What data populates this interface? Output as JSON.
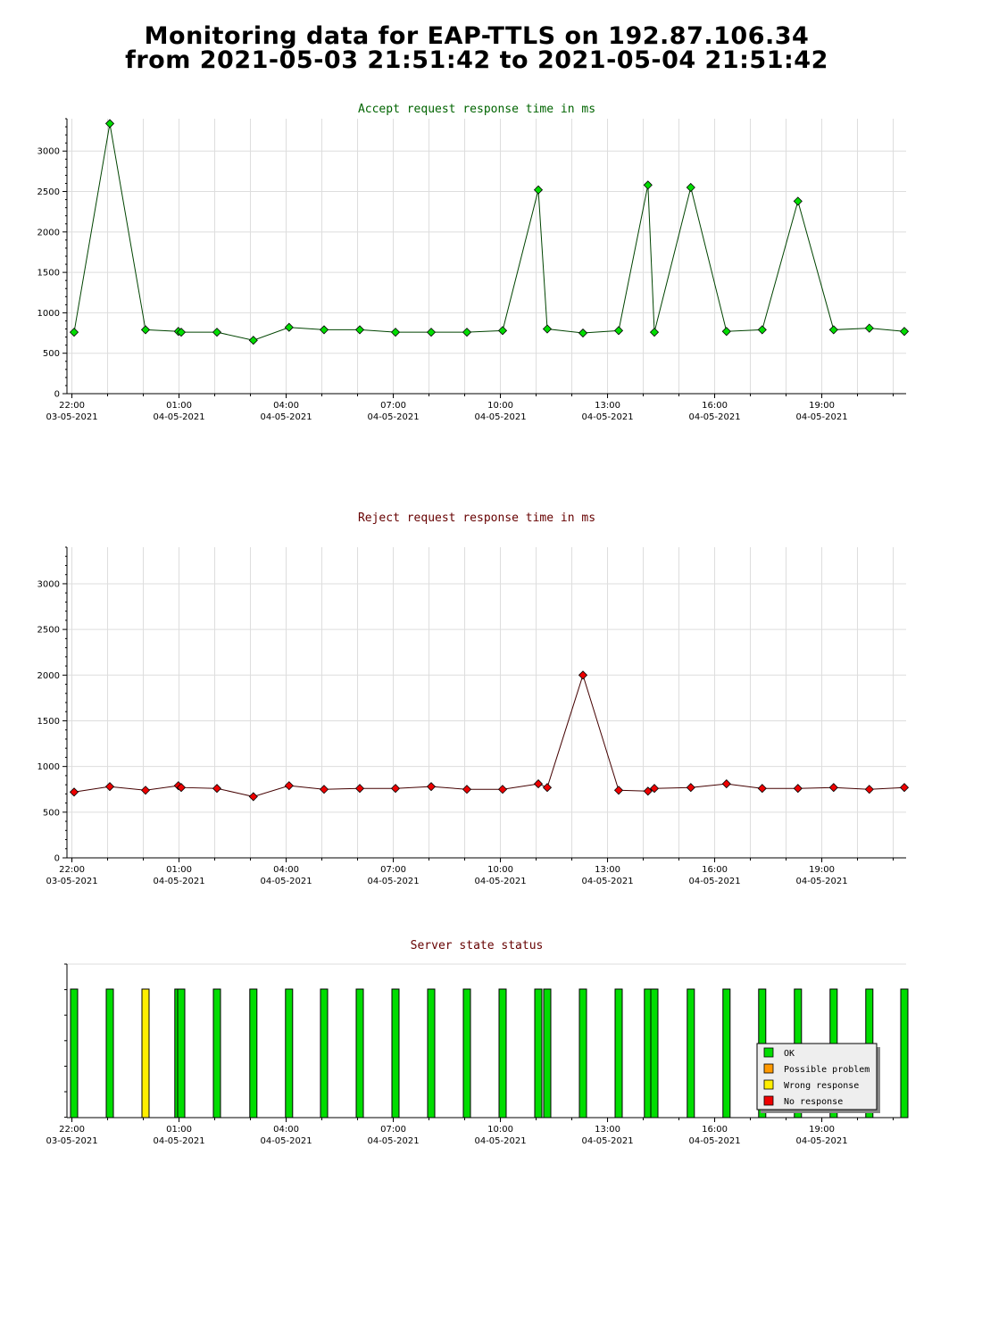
{
  "page": {
    "title_line1": "Monitoring data for EAP-TTLS on 192.87.106.34",
    "title_line2": "from 2021-05-03 21:51:42 to 2021-05-04 21:51:42"
  },
  "x_ticks": [
    {
      "h": -0.8617,
      "time": "22:00",
      "date": "03-05-2021"
    },
    {
      "h": 2.1383,
      "time": "01:00",
      "date": "04-05-2021"
    },
    {
      "h": 5.1383,
      "time": "04:00",
      "date": "04-05-2021"
    },
    {
      "h": 8.1383,
      "time": "07:00",
      "date": "04-05-2021"
    },
    {
      "h": 11.1383,
      "time": "10:00",
      "date": "04-05-2021"
    },
    {
      "h": 14.1383,
      "time": "13:00",
      "date": "04-05-2021"
    },
    {
      "h": 17.1383,
      "time": "16:00",
      "date": "04-05-2021"
    },
    {
      "h": 20.1383,
      "time": "19:00",
      "date": "04-05-2021"
    }
  ],
  "chart_data": [
    {
      "type": "line",
      "title": "Accept request response time in ms",
      "title_color": "#006400",
      "xlabel": "",
      "ylabel": "",
      "xlim_hours": [
        -1.0,
        22.5
      ],
      "ylim": [
        0,
        3400
      ],
      "yticks": [
        0,
        500,
        1000,
        1500,
        2000,
        2500,
        3000
      ],
      "grid": true,
      "point_color": "#00dd00",
      "line_color": "#004400",
      "x_hours": [
        -0.8,
        0.2,
        1.2,
        2.12,
        2.2,
        3.2,
        4.22,
        5.22,
        6.2,
        7.2,
        8.2,
        9.2,
        10.2,
        11.2,
        12.2,
        12.45,
        13.45,
        14.45,
        15.27,
        15.45,
        16.47,
        17.47,
        18.47,
        19.47,
        20.47,
        21.47,
        22.45
      ],
      "values": [
        760,
        3340,
        790,
        770,
        760,
        760,
        660,
        820,
        790,
        790,
        760,
        760,
        760,
        780,
        2520,
        800,
        750,
        780,
        2580,
        760,
        2550,
        770,
        790,
        2380,
        790,
        810,
        770
      ]
    },
    {
      "type": "line",
      "title": "Reject request response time in ms",
      "title_color": "#660000",
      "xlabel": "",
      "ylabel": "",
      "xlim_hours": [
        -1.0,
        22.5
      ],
      "ylim": [
        0,
        3400
      ],
      "yticks": [
        0,
        500,
        1000,
        1500,
        2000,
        2500,
        3000
      ],
      "grid": true,
      "point_color": "#ee0000",
      "line_color": "#440000",
      "x_hours": [
        -0.8,
        0.2,
        1.2,
        2.12,
        2.2,
        3.2,
        4.22,
        5.22,
        6.2,
        7.2,
        8.2,
        9.2,
        10.2,
        11.2,
        12.2,
        12.45,
        13.45,
        14.45,
        15.27,
        15.45,
        16.47,
        17.47,
        18.47,
        19.47,
        20.47,
        21.47,
        22.45
      ],
      "values": [
        720,
        780,
        740,
        790,
        770,
        760,
        670,
        790,
        750,
        760,
        760,
        780,
        750,
        750,
        810,
        770,
        2000,
        740,
        730,
        760,
        770,
        810,
        760,
        760,
        770,
        750,
        770
      ]
    },
    {
      "type": "bar",
      "title": "Server state status",
      "title_color": "#660000",
      "xlim_hours": [
        -1.0,
        22.5
      ],
      "x_hours": [
        -0.8,
        0.2,
        1.2,
        2.12,
        2.2,
        3.2,
        4.22,
        5.22,
        6.2,
        7.2,
        8.2,
        9.2,
        10.2,
        11.2,
        12.2,
        12.45,
        13.45,
        14.45,
        15.27,
        15.45,
        16.47,
        17.47,
        18.47,
        19.47,
        20.47,
        21.47,
        22.45
      ],
      "states": [
        "ok",
        "ok",
        "wrong",
        "ok",
        "ok",
        "ok",
        "ok",
        "ok",
        "ok",
        "ok",
        "ok",
        "ok",
        "ok",
        "ok",
        "ok",
        "ok",
        "ok",
        "ok",
        "ok",
        "ok",
        "ok",
        "ok",
        "ok",
        "ok",
        "ok",
        "ok",
        "ok"
      ],
      "legend": [
        {
          "key": "ok",
          "label": "OK",
          "color": "#00dd00"
        },
        {
          "key": "problem",
          "label": "Possible problem",
          "color": "#ff9900"
        },
        {
          "key": "wrong",
          "label": "Wrong response",
          "color": "#ffee00"
        },
        {
          "key": "none",
          "label": "No response",
          "color": "#ee0000"
        }
      ],
      "legend_position": "bottom-right"
    }
  ]
}
